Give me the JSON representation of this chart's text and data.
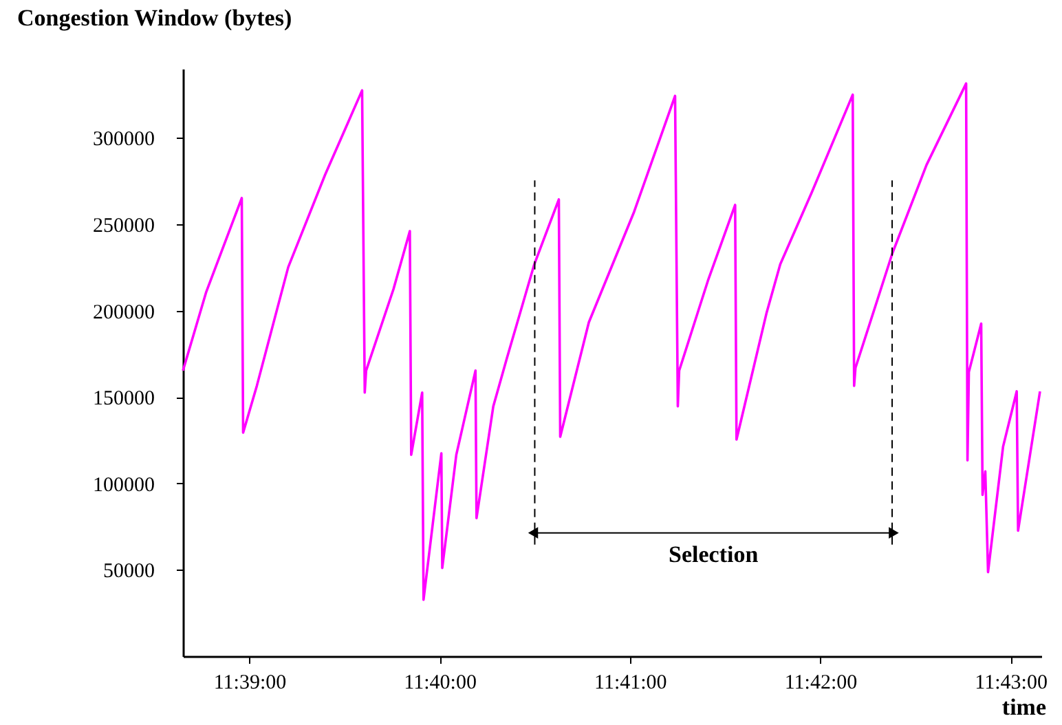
{
  "chart_data": {
    "type": "line",
    "ylabel": "Congestion Window (bytes)",
    "xlabel": "time",
    "x": [
      11.64419,
      11.64623,
      11.64934,
      11.64946,
      11.65066,
      11.65341,
      11.65664,
      11.65988,
      11.66011,
      11.66023,
      11.66263,
      11.66406,
      11.66418,
      11.66514,
      11.66526,
      11.66682,
      11.6669,
      11.66813,
      11.66981,
      11.6699,
      11.67137,
      11.67256,
      11.67496,
      11.67711,
      11.67723,
      11.67974,
      11.6837,
      11.68729,
      11.68753,
      11.68765,
      11.69016,
      11.69255,
      11.69267,
      11.69531,
      11.6965,
      11.69926,
      11.70285,
      11.70297,
      11.70309,
      11.70632,
      11.70931,
      11.71278,
      11.7129,
      11.71302,
      11.7141,
      11.71422,
      11.71446,
      11.7147,
      11.71602,
      11.71721,
      11.71733,
      11.71925
    ],
    "series": [
      {
        "color": "#ff00ff",
        "values": [
          165300,
          210900,
          265200,
          129400,
          156500,
          225200,
          278700,
          327500,
          152600,
          165300,
          212500,
          246000,
          116600,
          152600,
          32700,
          117400,
          51100,
          116600,
          165300,
          79900,
          144600,
          172500,
          226800,
          264400,
          127000,
          193300,
          257200,
          324300,
          144600,
          165300,
          217200,
          261200,
          125400,
          198900,
          226800,
          268400,
          325000,
          156500,
          166900,
          233200,
          284300,
          331500,
          113400,
          164500,
          192500,
          93400,
          107000,
          48700,
          121400,
          153300,
          72700,
          153300
        ]
      }
    ],
    "xlim": [
      11.64419,
      11.71937
    ],
    "xticks": [
      {
        "value": 11.65,
        "label": "11:39:00"
      },
      {
        "value": 11.666667,
        "label": "11:40:00"
      },
      {
        "value": 11.683333,
        "label": "11:41:00"
      },
      {
        "value": 11.7,
        "label": "11:42:00"
      },
      {
        "value": 11.716667,
        "label": "11:43:00"
      }
    ],
    "ylim": [
      0,
      340000
    ],
    "yticks": [
      50000,
      100000,
      150000,
      200000,
      250000,
      300000
    ],
    "grid": false,
    "marker": "none",
    "line_style": "solid",
    "ref_lines": [
      {
        "axis": "x",
        "value": 11.675,
        "label": null,
        "color": "#000000",
        "line_style": "dashed"
      },
      {
        "axis": "x",
        "value": 11.7063,
        "label": null,
        "color": "#000000",
        "line_style": "dashed"
      }
    ],
    "annotations": [
      "Selection"
    ]
  }
}
